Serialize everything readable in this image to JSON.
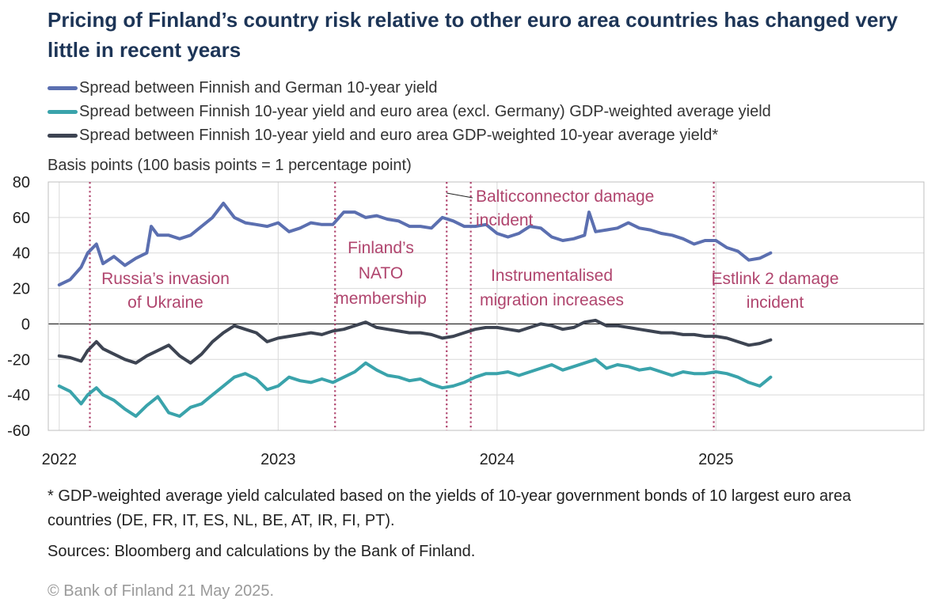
{
  "title": "Pricing of Finland’s country risk relative to other euro area countries has changed very little in recent years",
  "unit_label": "Basis points (100 basis points = 1 percentage point)",
  "footnote": "* GDP-weighted average yield calculated based on the yields of 10-year government bonds of 10 largest euro area countries (DE, FR, IT, ES, NL, BE, AT, IR, FI, PT).",
  "sources": "Sources: Bloomberg and calculations by the Bank of Finland.",
  "copyright": "© Bank of Finland 21 May 2025.",
  "colors": {
    "german_spread": "#5b6fb0",
    "ex_germany_spread": "#3aa3ab",
    "ea_spread": "#3d4452",
    "event_line": "#b0456e",
    "event_text": "#b0456e",
    "grid": "#d9d9d9"
  },
  "chart_data": {
    "type": "line",
    "xlim": [
      2021.95,
      2025.95
    ],
    "ylim": [
      -60,
      80
    ],
    "y_ticks": [
      80,
      60,
      40,
      20,
      0,
      -20,
      -40,
      -60
    ],
    "x_tick_labels": [
      "2022",
      "2023",
      "2024",
      "2025"
    ],
    "x_tick_values": [
      2022,
      2023,
      2024,
      2025
    ],
    "grid": true,
    "legend_position": "top",
    "series": [
      {
        "name": "Spread between Finnish and German 10-year yield",
        "color_key": "german_spread",
        "x": [
          2022.0,
          2022.05,
          2022.1,
          2022.13,
          2022.17,
          2022.2,
          2022.25,
          2022.3,
          2022.35,
          2022.4,
          2022.42,
          2022.45,
          2022.5,
          2022.55,
          2022.6,
          2022.65,
          2022.7,
          2022.75,
          2022.8,
          2022.85,
          2022.9,
          2022.95,
          2023.0,
          2023.05,
          2023.1,
          2023.15,
          2023.2,
          2023.25,
          2023.3,
          2023.35,
          2023.4,
          2023.45,
          2023.5,
          2023.55,
          2023.6,
          2023.65,
          2023.7,
          2023.75,
          2023.8,
          2023.85,
          2023.9,
          2023.95,
          2024.0,
          2024.05,
          2024.1,
          2024.15,
          2024.2,
          2024.25,
          2024.3,
          2024.35,
          2024.4,
          2024.42,
          2024.45,
          2024.5,
          2024.55,
          2024.6,
          2024.65,
          2024.7,
          2024.75,
          2024.8,
          2024.85,
          2024.9,
          2024.95,
          2025.0,
          2025.05,
          2025.1,
          2025.15,
          2025.2,
          2025.25
        ],
        "values": [
          22,
          25,
          32,
          40,
          45,
          34,
          38,
          33,
          37,
          40,
          55,
          50,
          50,
          48,
          50,
          55,
          60,
          68,
          60,
          57,
          56,
          55,
          57,
          52,
          54,
          57,
          56,
          56,
          63,
          63,
          60,
          61,
          59,
          58,
          55,
          55,
          54,
          60,
          58,
          55,
          55,
          56,
          51,
          49,
          51,
          55,
          54,
          49,
          47,
          48,
          50,
          63,
          52,
          53,
          54,
          57,
          54,
          53,
          51,
          50,
          48,
          45,
          47,
          47,
          43,
          41,
          36,
          37,
          40
        ]
      },
      {
        "name": "Spread between Finnish 10-year yield and euro area (excl. Germany) GDP-weighted average yield",
        "color_key": "ex_germany_spread",
        "x": [
          2022.0,
          2022.05,
          2022.1,
          2022.13,
          2022.17,
          2022.2,
          2022.25,
          2022.3,
          2022.35,
          2022.4,
          2022.45,
          2022.5,
          2022.55,
          2022.6,
          2022.65,
          2022.7,
          2022.75,
          2022.8,
          2022.85,
          2022.9,
          2022.95,
          2023.0,
          2023.05,
          2023.1,
          2023.15,
          2023.2,
          2023.25,
          2023.3,
          2023.35,
          2023.4,
          2023.45,
          2023.5,
          2023.55,
          2023.6,
          2023.65,
          2023.7,
          2023.75,
          2023.8,
          2023.85,
          2023.9,
          2023.95,
          2024.0,
          2024.05,
          2024.1,
          2024.15,
          2024.2,
          2024.25,
          2024.3,
          2024.35,
          2024.4,
          2024.45,
          2024.5,
          2024.55,
          2024.6,
          2024.65,
          2024.7,
          2024.75,
          2024.8,
          2024.85,
          2024.9,
          2024.95,
          2025.0,
          2025.05,
          2025.1,
          2025.15,
          2025.2,
          2025.25
        ],
        "values": [
          -35,
          -38,
          -45,
          -40,
          -36,
          -40,
          -43,
          -48,
          -52,
          -46,
          -41,
          -50,
          -52,
          -47,
          -45,
          -40,
          -35,
          -30,
          -28,
          -31,
          -37,
          -35,
          -30,
          -32,
          -33,
          -31,
          -33,
          -30,
          -27,
          -22,
          -26,
          -29,
          -30,
          -32,
          -31,
          -34,
          -36,
          -35,
          -33,
          -30,
          -28,
          -28,
          -27,
          -29,
          -27,
          -25,
          -23,
          -26,
          -24,
          -22,
          -20,
          -25,
          -23,
          -24,
          -26,
          -25,
          -27,
          -29,
          -27,
          -28,
          -28,
          -27,
          -28,
          -30,
          -33,
          -35,
          -30
        ]
      },
      {
        "name": "Spread between Finnish 10-year yield and euro area GDP-weighted 10-year average yield*",
        "color_key": "ea_spread",
        "x": [
          2022.0,
          2022.05,
          2022.1,
          2022.13,
          2022.17,
          2022.2,
          2022.25,
          2022.3,
          2022.35,
          2022.4,
          2022.45,
          2022.5,
          2022.55,
          2022.6,
          2022.65,
          2022.7,
          2022.75,
          2022.8,
          2022.85,
          2022.9,
          2022.95,
          2023.0,
          2023.05,
          2023.1,
          2023.15,
          2023.2,
          2023.25,
          2023.3,
          2023.35,
          2023.4,
          2023.45,
          2023.5,
          2023.55,
          2023.6,
          2023.65,
          2023.7,
          2023.75,
          2023.8,
          2023.85,
          2023.9,
          2023.95,
          2024.0,
          2024.05,
          2024.1,
          2024.15,
          2024.2,
          2024.25,
          2024.3,
          2024.35,
          2024.4,
          2024.45,
          2024.5,
          2024.55,
          2024.6,
          2024.65,
          2024.7,
          2024.75,
          2024.8,
          2024.85,
          2024.9,
          2024.95,
          2025.0,
          2025.05,
          2025.1,
          2025.15,
          2025.2,
          2025.25
        ],
        "values": [
          -18,
          -19,
          -21,
          -15,
          -10,
          -14,
          -17,
          -20,
          -22,
          -18,
          -15,
          -12,
          -18,
          -22,
          -17,
          -10,
          -5,
          -1,
          -3,
          -5,
          -10,
          -8,
          -7,
          -6,
          -5,
          -6,
          -4,
          -3,
          -1,
          1,
          -2,
          -3,
          -4,
          -5,
          -5,
          -6,
          -8,
          -7,
          -5,
          -3,
          -2,
          -2,
          -3,
          -4,
          -2,
          0,
          -1,
          -3,
          -2,
          1,
          2,
          -1,
          -1,
          -2,
          -3,
          -4,
          -5,
          -5,
          -6,
          -6,
          -7,
          -7,
          -8,
          -10,
          -12,
          -11,
          -9
        ]
      }
    ],
    "events": [
      {
        "label_lines": [
          "Russia’s invasion",
          "of Ukraine"
        ],
        "x": 2022.14
      },
      {
        "label_lines": [
          "Finland’s",
          "NATO",
          "membership"
        ],
        "x": 2023.26
      },
      {
        "label_lines": [
          "Balticconnector damage",
          "incident"
        ],
        "x": 2023.77
      },
      {
        "label_lines": [
          "Instrumentalised",
          "migration increases"
        ],
        "x": 2023.88
      },
      {
        "label_lines": [
          "Estlink 2 damage",
          "incident"
        ],
        "x": 2024.99
      }
    ]
  }
}
